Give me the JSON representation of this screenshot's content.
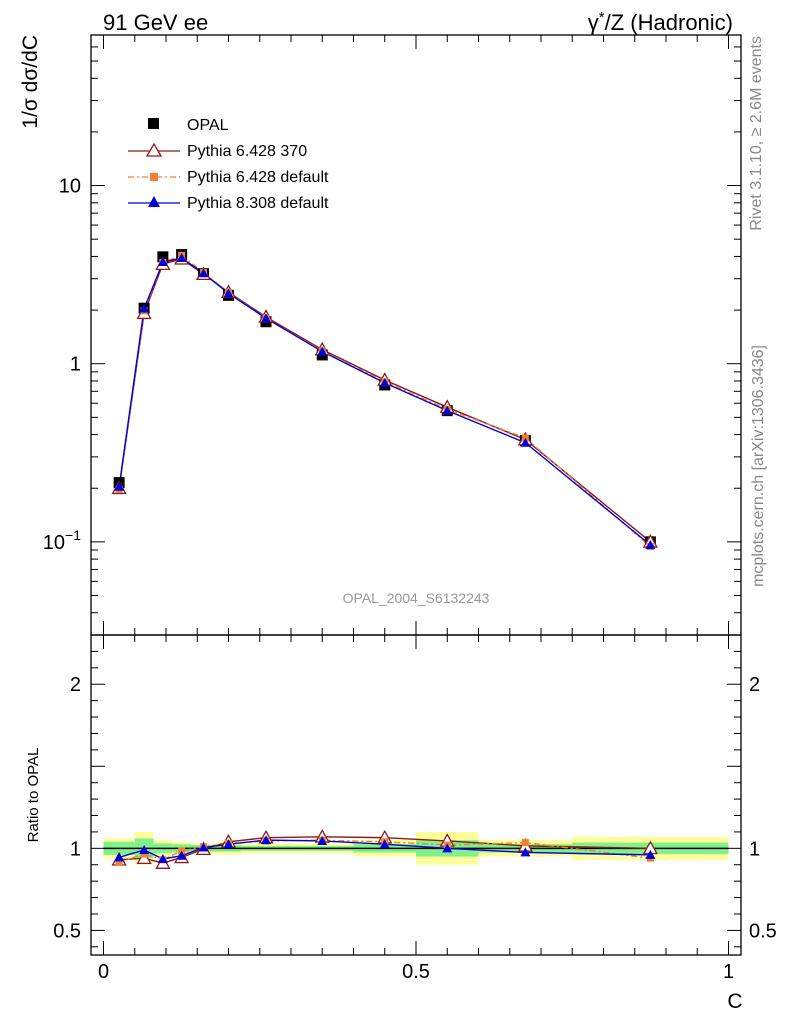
{
  "header": {
    "left": "91 GeV ee",
    "right_pre": "γ",
    "right_sup": "*",
    "right_post": "/Z (Hadronic)"
  },
  "side_labels": {
    "rivet": "Rivet 3.1.10, ≥ 2.6M events",
    "mcplots": "mcplots.cern.ch [arXiv:1306.3436]"
  },
  "watermark": "OPAL_2004_S6132243",
  "colors": {
    "data": "#000000",
    "py6_370": "#8b1a1a",
    "py6_default": "#f08030",
    "py8_default": "#0000dd",
    "band_outer": "#ffff99",
    "band_inner": "#7ff08a"
  },
  "chart_data": [
    {
      "type": "scatter",
      "ylabel": "1/σ dσ/dC",
      "yscale": "log",
      "ylim": [
        0.03,
        70
      ],
      "xlim": [
        -0.02,
        1.02
      ],
      "y_ticks": [
        {
          "value": 0.1,
          "label_base": "10",
          "label_exp": "−1"
        },
        {
          "value": 1,
          "label_base": "1",
          "label_exp": ""
        },
        {
          "value": 10,
          "label_base": "10",
          "label_exp": ""
        }
      ],
      "x": [
        0.025,
        0.065,
        0.095,
        0.125,
        0.16,
        0.2,
        0.26,
        0.35,
        0.45,
        0.55,
        0.675,
        0.875
      ],
      "series": [
        {
          "name": "OPAL",
          "marker": "square",
          "values": [
            0.215,
            2.05,
            3.98,
            4.1,
            3.2,
            2.42,
            1.72,
            1.12,
            0.76,
            0.545,
            0.37,
            0.1
          ]
        },
        {
          "name": "Pythia 6.428 370",
          "marker": "open-triangle",
          "values": [
            0.2,
            1.92,
            3.62,
            3.88,
            3.18,
            2.52,
            1.83,
            1.2,
            0.81,
            0.57,
            0.375,
            0.1
          ]
        },
        {
          "name": "Pythia 6.428 default",
          "marker": "filled-square-small",
          "values": [
            0.197,
            1.98,
            3.7,
            4.05,
            3.25,
            2.5,
            1.8,
            1.18,
            0.79,
            0.555,
            0.383,
            0.094
          ]
        },
        {
          "name": "Pythia 8.308 default",
          "marker": "filled-triangle",
          "values": [
            0.204,
            2.04,
            3.72,
            3.92,
            3.22,
            2.48,
            1.8,
            1.17,
            0.78,
            0.545,
            0.36,
            0.096
          ]
        }
      ]
    },
    {
      "type": "line",
      "ylabel": "Ratio to OPAL",
      "xlabel": "C",
      "ylim": [
        0.35,
        2.3
      ],
      "y_ticks": [
        0.5,
        1,
        2
      ],
      "x_ticks": [
        {
          "value": 0,
          "label": "0"
        },
        {
          "value": 0.5,
          "label": "0.5"
        },
        {
          "value": 1,
          "label": "1"
        }
      ],
      "x": [
        0.025,
        0.065,
        0.095,
        0.125,
        0.16,
        0.2,
        0.26,
        0.35,
        0.45,
        0.55,
        0.675,
        0.875
      ],
      "bands": [
        {
          "x0": 0.0,
          "x1": 0.05,
          "outer": 0.06,
          "inner": 0.04
        },
        {
          "x0": 0.05,
          "x1": 0.08,
          "outer": 0.1,
          "inner": 0.06
        },
        {
          "x0": 0.08,
          "x1": 0.11,
          "outer": 0.05,
          "inner": 0.03
        },
        {
          "x0": 0.11,
          "x1": 0.14,
          "outer": 0.04,
          "inner": 0.025
        },
        {
          "x0": 0.14,
          "x1": 0.18,
          "outer": 0.03,
          "inner": 0.02
        },
        {
          "x0": 0.18,
          "x1": 0.22,
          "outer": 0.04,
          "inner": 0.02
        },
        {
          "x0": 0.22,
          "x1": 0.3,
          "outer": 0.03,
          "inner": 0.015
        },
        {
          "x0": 0.3,
          "x1": 0.4,
          "outer": 0.03,
          "inner": 0.015
        },
        {
          "x0": 0.4,
          "x1": 0.5,
          "outer": 0.05,
          "inner": 0.025
        },
        {
          "x0": 0.5,
          "x1": 0.6,
          "outer": 0.1,
          "inner": 0.05
        },
        {
          "x0": 0.6,
          "x1": 0.75,
          "outer": 0.05,
          "inner": 0.025
        },
        {
          "x0": 0.75,
          "x1": 1.0,
          "outer": 0.07,
          "inner": 0.035
        }
      ],
      "series": [
        {
          "name": "Pythia 6.428 370",
          "values": [
            0.93,
            0.94,
            0.91,
            0.945,
            0.995,
            1.04,
            1.065,
            1.07,
            1.065,
            1.045,
            1.015,
            1.0
          ]
        },
        {
          "name": "Pythia 6.428 default",
          "values": [
            0.915,
            0.965,
            0.93,
            0.985,
            1.01,
            1.03,
            1.045,
            1.05,
            1.04,
            1.02,
            1.035,
            0.94
          ]
        },
        {
          "name": "Pythia 8.308 default",
          "values": [
            0.945,
            0.99,
            0.935,
            0.955,
            1.005,
            1.025,
            1.05,
            1.045,
            1.025,
            1.0,
            0.975,
            0.96
          ]
        }
      ]
    }
  ]
}
